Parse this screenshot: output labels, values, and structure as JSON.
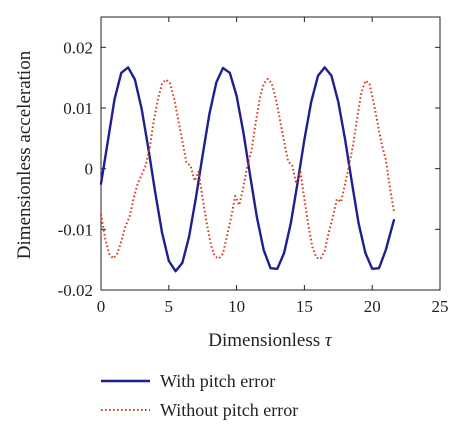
{
  "chart_data": {
    "type": "line",
    "title": "",
    "xlabel": "Dimensionless",
    "xlabel_symbol": "τ",
    "ylabel": "Dimensionless acceleration",
    "xlim": [
      0,
      25
    ],
    "ylim": [
      -0.02,
      0.025
    ],
    "xticks": [
      0,
      5,
      10,
      15,
      20,
      25
    ],
    "xtick_labels": [
      "0",
      "5",
      "10",
      "15",
      "20",
      "25"
    ],
    "yticks": [
      -0.02,
      -0.01,
      0,
      0.01,
      0.02
    ],
    "ytick_labels": [
      "-0.02",
      "-0.01",
      "0",
      "0.01",
      "0.02"
    ],
    "grid": false,
    "legend_position": "bottom",
    "series": [
      {
        "name": "With pitch error",
        "color": "#1f1f8f",
        "style": "solid",
        "x": [
          0,
          0.5,
          1,
          1.5,
          2,
          2.5,
          3,
          3.5,
          4,
          4.5,
          5,
          5.5,
          6,
          6.5,
          7,
          7.5,
          8,
          8.5,
          9,
          9.5,
          10,
          10.5,
          11,
          11.5,
          12,
          12.5,
          13,
          13.5,
          14,
          14.5,
          15,
          15.5,
          16,
          16.5,
          17,
          17.5,
          18,
          18.5,
          19,
          19.5,
          20,
          20.5,
          21,
          21.6
        ],
        "y": [
          -0.0025,
          0.0045,
          0.0115,
          0.0158,
          0.0167,
          0.0147,
          0.0098,
          0.0032,
          -0.0039,
          -0.0105,
          -0.0152,
          -0.0169,
          -0.0155,
          -0.0112,
          -0.0048,
          0.0023,
          0.0091,
          0.0142,
          0.0166,
          0.0158,
          0.012,
          0.006,
          -0.0012,
          -0.008,
          -0.0134,
          -0.0164,
          -0.0165,
          -0.0139,
          -0.009,
          -0.0023,
          0.0048,
          0.011,
          0.0153,
          0.0167,
          0.0153,
          0.011,
          0.0048,
          -0.0023,
          -0.009,
          -0.0139,
          -0.0165,
          -0.0164,
          -0.0134,
          -0.0085
        ]
      },
      {
        "name": "Without pitch error",
        "color": "#d63b1f",
        "style": "dotted",
        "x": [
          0,
          0.3,
          0.6,
          0.9,
          1.2,
          1.5,
          1.8,
          2.1,
          2.4,
          2.7,
          3.0,
          3.3,
          3.6,
          3.9,
          4.2,
          4.5,
          4.8,
          5.1,
          5.4,
          5.7,
          6.0,
          6.3,
          6.6,
          6.9,
          7.2,
          7.5,
          7.8,
          8.1,
          8.4,
          8.7,
          9.0,
          9.3,
          9.6,
          9.9,
          10.2,
          10.5,
          10.8,
          11.1,
          11.4,
          11.7,
          12.0,
          12.3,
          12.6,
          12.9,
          13.2,
          13.5,
          13.8,
          14.1,
          14.4,
          14.7,
          15.0,
          15.3,
          15.6,
          15.9,
          16.2,
          16.5,
          16.8,
          17.1,
          17.4,
          17.7,
          18.0,
          18.3,
          18.6,
          18.9,
          19.2,
          19.5,
          19.8,
          20.1,
          20.4,
          20.7,
          21.0,
          21.3,
          21.6
        ],
        "y": [
          -0.0075,
          -0.0115,
          -0.014,
          -0.0148,
          -0.014,
          -0.012,
          -0.0095,
          -0.008,
          -0.005,
          -0.0025,
          -0.001,
          0.0005,
          0.0035,
          0.008,
          0.0115,
          0.014,
          0.0147,
          0.014,
          0.0115,
          0.008,
          0.0045,
          0.001,
          0.0005,
          -0.002,
          -0.0005,
          -0.005,
          -0.009,
          -0.0125,
          -0.0145,
          -0.0148,
          -0.014,
          -0.011,
          -0.008,
          -0.0045,
          -0.006,
          -0.003,
          0.0005,
          0.003,
          0.0075,
          0.0115,
          0.014,
          0.0148,
          0.014,
          0.0115,
          0.008,
          0.0045,
          0.0012,
          0.0005,
          -0.0025,
          -0.0005,
          -0.005,
          -0.0095,
          -0.013,
          -0.0147,
          -0.0148,
          -0.0135,
          -0.0105,
          -0.008,
          -0.005,
          -0.0055,
          -0.0025,
          0.0005,
          0.004,
          0.0085,
          0.0125,
          0.0145,
          0.014,
          0.011,
          0.0075,
          0.004,
          0.0015,
          -0.003,
          -0.007
        ]
      }
    ]
  }
}
